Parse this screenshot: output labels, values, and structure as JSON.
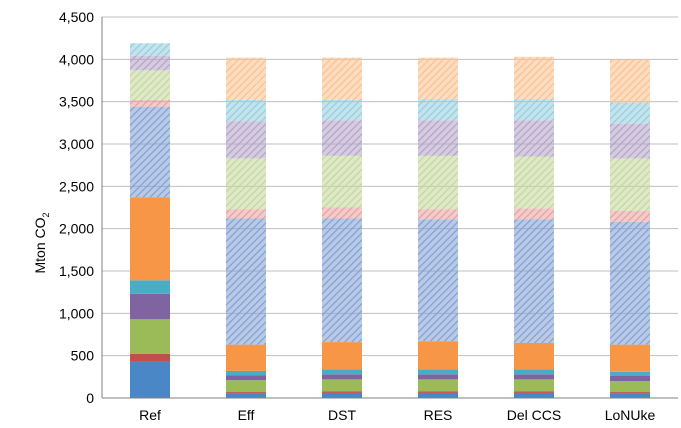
{
  "chart_data": {
    "type": "bar",
    "stacked": true,
    "categories": [
      "Ref",
      "Eff",
      "DST",
      "RES",
      "Del CCS",
      "LoNUke"
    ],
    "ylabel_main": "Mton CO",
    "ylabel_sub": "2",
    "ylim": [
      0,
      4500
    ],
    "yticks": [
      "0",
      "500",
      "1,000",
      "1,500",
      "2,000",
      "2,500",
      "3,000",
      "3,500",
      "4,000",
      "4,500"
    ],
    "ytick_values": [
      0,
      500,
      1000,
      1500,
      2000,
      2500,
      3000,
      3500,
      4000,
      4500
    ],
    "grid": true,
    "legend": "none",
    "colors": [
      "#4A87C7",
      "#C0504D",
      "#9BBB59",
      "#8064A2",
      "#4BACC6",
      "#F79646",
      "#A6A6A6",
      "#7F9FD3",
      "#E6A0A0",
      "#C3D69B",
      "#B3A2C7",
      "#93CDDD",
      "#FBC08F"
    ],
    "hatched": [
      false,
      false,
      false,
      false,
      false,
      false,
      true,
      true,
      true,
      true,
      true,
      true,
      true
    ],
    "series": [
      {
        "values": [
          430,
          50,
          60,
          60,
          60,
          50
        ]
      },
      {
        "values": [
          90,
          20,
          20,
          20,
          20,
          20
        ]
      },
      {
        "values": [
          410,
          140,
          140,
          140,
          140,
          130
        ]
      },
      {
        "values": [
          300,
          60,
          60,
          60,
          60,
          60
        ]
      },
      {
        "values": [
          160,
          50,
          60,
          60,
          60,
          50
        ]
      },
      {
        "values": [
          980,
          310,
          320,
          330,
          310,
          320
        ]
      },
      {
        "values": [
          0,
          0,
          0,
          0,
          0,
          0
        ]
      },
      {
        "values": [
          1070,
          1490,
          1460,
          1440,
          1460,
          1450
        ]
      },
      {
        "values": [
          80,
          110,
          130,
          120,
          130,
          130
        ]
      },
      {
        "values": [
          350,
          600,
          610,
          630,
          610,
          620
        ]
      },
      {
        "values": [
          170,
          440,
          420,
          420,
          430,
          410
        ]
      },
      {
        "values": [
          150,
          250,
          240,
          250,
          250,
          250
        ]
      },
      {
        "values": [
          0,
          500,
          500,
          490,
          500,
          510
        ]
      }
    ]
  }
}
